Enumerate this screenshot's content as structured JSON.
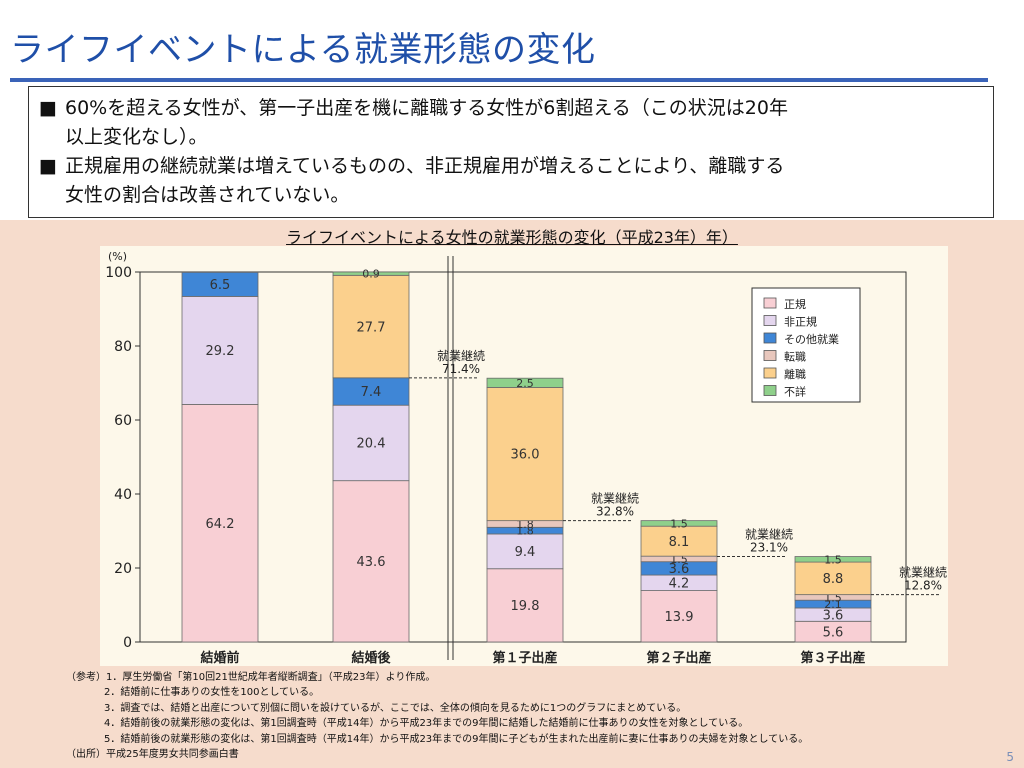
{
  "slide": {
    "title": "ライフイベントによる就業形態の変化",
    "page_number": "5"
  },
  "summary": {
    "bullet_mark": "■",
    "bullets": [
      {
        "line1": "60%を超える女性が、第一子出産を機に離職する女性が6割超える（この状況は20年",
        "line2": "以上変化なし）。"
      },
      {
        "line1": "正規雇用の継続就業は増えているものの、非正規雇用が増えることにより、離職する",
        "line2": "女性の割合は改善されていない。"
      }
    ]
  },
  "chart_caption": "ライフイベントによる女性の就業形態の変化（平成23年）年）",
  "chart_data": {
    "type": "bar",
    "stacked": true,
    "ylabel": "(%)",
    "ylim": [
      0,
      100
    ],
    "yticks": [
      0,
      20,
      40,
      60,
      80,
      100
    ],
    "categories": [
      "結婚前",
      "結婚後",
      "第１子出産",
      "第２子出産",
      "第３子出産"
    ],
    "series": [
      {
        "name": "正規",
        "color": "#f8cfd4",
        "values": [
          64.2,
          43.6,
          19.8,
          13.9,
          5.6
        ]
      },
      {
        "name": "非正規",
        "color": "#e4d6ee",
        "values": [
          29.2,
          20.4,
          9.4,
          4.2,
          3.6
        ]
      },
      {
        "name": "その他就業",
        "color": "#3f86d6",
        "values": [
          6.5,
          7.4,
          1.8,
          3.6,
          2.1
        ]
      },
      {
        "name": "転職",
        "color": "#e8c7bd",
        "values": [
          0,
          0,
          1.8,
          1.5,
          1.5
        ]
      },
      {
        "name": "離職",
        "color": "#fbd08d",
        "values": [
          0,
          27.7,
          36.0,
          8.1,
          8.8
        ]
      },
      {
        "name": "不詳",
        "color": "#8fd08b",
        "values": [
          0,
          0.9,
          2.5,
          1.5,
          1.5
        ]
      }
    ],
    "data_labels": [
      [
        "64.2",
        "29.2",
        "6.5",
        "",
        "",
        ""
      ],
      [
        "43.6",
        "20.4",
        "7.4",
        "",
        "27.7",
        "0.9"
      ],
      [
        "19.8",
        "9.4",
        "1.8",
        "1.8",
        "36.0",
        "2.5"
      ],
      [
        "13.9",
        "4.2",
        "3.6",
        "1.5",
        "8.1",
        "1.5"
      ],
      [
        "5.6",
        "3.6",
        "2.1",
        "1.5",
        "8.8",
        "1.5"
      ]
    ],
    "annotations": [
      {
        "category_index": 1,
        "label": "就業継続",
        "value_label": "71.4%",
        "value": 71.4
      },
      {
        "category_index": 2,
        "label": "就業継続",
        "value_label": "32.8%",
        "value": 32.8
      },
      {
        "category_index": 3,
        "label": "就業継続",
        "value_label": "23.1%",
        "value": 23.1
      },
      {
        "category_index": 4,
        "label": "就業継続",
        "value_label": "12.8%",
        "value": 12.8
      }
    ],
    "legend_position": "top-right",
    "grid": false
  },
  "notes": [
    "（参考）1．厚生労働省「第10回21世紀成年者縦断調査」（平成23年）より作成。",
    "2．結婚前に仕事ありの女性を100としている。",
    "3．調査では、結婚と出産について別個に問いを設けているが、ここでは、全体の傾向を見るために1つのグラフにまとめている。",
    "4．結婚前後の就業形態の変化は、第1回調査時（平成14年）から平成23年までの9年間に結婚した結婚前に仕事ありの女性を対象としている。",
    "5．結婚前後の就業形態の変化は、第1回調査時（平成14年）から平成23年までの9年間に子どもが生まれた出産前に妻に仕事ありの夫婦を対象としている。",
    "（出所）平成25年度男女共同参画白書"
  ]
}
